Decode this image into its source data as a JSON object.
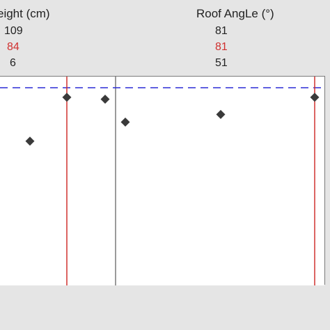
{
  "header": {
    "columns": [
      {
        "title": "eight (cm)",
        "max": "109",
        "current": "84",
        "min": "6"
      },
      {
        "title": "Roof AngLe (°)",
        "max": "81",
        "current": "81",
        "min": "51"
      }
    ]
  },
  "colors": {
    "current_value": "#d0302f",
    "reference_line": "#2b2bd6",
    "optimal_line": "#d0302f",
    "points": "#3a3a3a",
    "panel_bg": "#e5e5e5",
    "plot_bg": "#ffffff"
  },
  "chart_data": {
    "type": "scatter",
    "reference_line_style": "dashed",
    "panels": [
      {
        "name": "eight (cm)",
        "xlim": [
          6,
          109
        ],
        "current_x": 84,
        "points": [
          {
            "x": 26,
            "y": 0.72
          },
          {
            "x": 84,
            "y": 0.95
          },
          {
            "x": 100,
            "y": 0.94
          }
        ]
      },
      {
        "name": "Roof AngLe (°)",
        "xlim": [
          51,
          81
        ],
        "current_x": 81,
        "points": [
          {
            "x": 51.5,
            "y": 0.82
          },
          {
            "x": 64,
            "y": 0.86
          },
          {
            "x": 81,
            "y": 0.95
          }
        ]
      }
    ]
  }
}
